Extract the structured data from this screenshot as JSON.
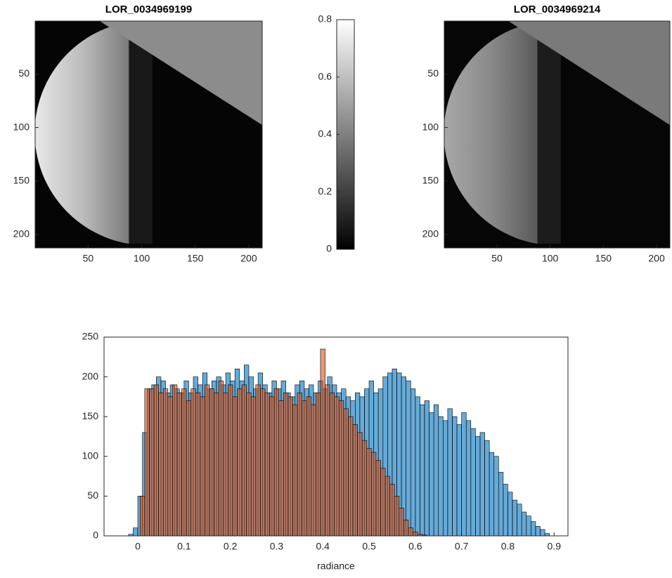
{
  "chart_data": [
    {
      "type": "image",
      "title": "LOR_0034969199",
      "xlim": [
        0.5,
        212.5
      ],
      "ylim": [
        0.5,
        212.5
      ],
      "xticks": [
        50,
        100,
        150,
        200
      ],
      "yticks": [
        50,
        100,
        150,
        200
      ]
    },
    {
      "type": "colorbar",
      "clim": [
        0,
        0.8
      ],
      "ticks": [
        0,
        0.2,
        0.4,
        0.6,
        0.8
      ]
    },
    {
      "type": "image",
      "title": "LOR_0034969214",
      "xlim": [
        0.5,
        212.5
      ],
      "ylim": [
        0.5,
        212.5
      ],
      "xticks": [
        50,
        100,
        150,
        200
      ],
      "yticks": [
        50,
        100,
        150,
        200
      ]
    },
    {
      "type": "histogram",
      "xlabel": "radiance",
      "xlim": [
        -0.073,
        0.93
      ],
      "ylim": [
        0,
        250
      ],
      "xticks": [
        0,
        0.1,
        0.2,
        0.3,
        0.4,
        0.5,
        0.6,
        0.7,
        0.8,
        0.9
      ],
      "yticks": [
        0,
        50,
        100,
        150,
        200,
        250
      ],
      "alpha": 0.6,
      "series": [
        {
          "color": "#0072bd",
          "bins": [
            -0.02,
            -0.01,
            0,
            0.01,
            0.02,
            0.03,
            0.04,
            0.05,
            0.06,
            0.07,
            0.08,
            0.09,
            0.1,
            0.11,
            0.12,
            0.13,
            0.14,
            0.15,
            0.16,
            0.17,
            0.18,
            0.19,
            0.2,
            0.21,
            0.22,
            0.23,
            0.24,
            0.25,
            0.26,
            0.27,
            0.28,
            0.29,
            0.3,
            0.31,
            0.32,
            0.33,
            0.34,
            0.35,
            0.36,
            0.37,
            0.38,
            0.39,
            0.4,
            0.41,
            0.42,
            0.43,
            0.44,
            0.45,
            0.46,
            0.47,
            0.48,
            0.49,
            0.5,
            0.51,
            0.52,
            0.53,
            0.54,
            0.55,
            0.56,
            0.57,
            0.58,
            0.59,
            0.6,
            0.61,
            0.62,
            0.63,
            0.64,
            0.65,
            0.66,
            0.67,
            0.68,
            0.69,
            0.7,
            0.71,
            0.72,
            0.73,
            0.74,
            0.75,
            0.76,
            0.77,
            0.78,
            0.79,
            0.8,
            0.81,
            0.82,
            0.83,
            0.84,
            0.85,
            0.86,
            0.87,
            0.88,
            0.89
          ],
          "values": [
            2,
            10,
            50,
            130,
            185,
            190,
            200,
            195,
            180,
            190,
            185,
            180,
            195,
            180,
            200,
            190,
            205,
            185,
            195,
            200,
            190,
            205,
            195,
            210,
            195,
            215,
            200,
            185,
            205,
            190,
            180,
            195,
            185,
            195,
            180,
            175,
            190,
            195,
            185,
            190,
            180,
            195,
            185,
            200,
            190,
            180,
            185,
            175,
            170,
            180,
            175,
            185,
            195,
            180,
            185,
            200,
            205,
            210,
            205,
            200,
            195,
            185,
            175,
            165,
            170,
            155,
            165,
            150,
            145,
            160,
            150,
            140,
            155,
            145,
            135,
            125,
            130,
            120,
            105,
            100,
            80,
            65,
            55,
            45,
            40,
            30,
            25,
            18,
            12,
            8,
            3
          ]
        },
        {
          "color": "#d95319",
          "bins": [
            0.005,
            0.015,
            0.025,
            0.035,
            0.045,
            0.055,
            0.065,
            0.075,
            0.085,
            0.095,
            0.105,
            0.115,
            0.125,
            0.135,
            0.145,
            0.155,
            0.165,
            0.175,
            0.185,
            0.195,
            0.205,
            0.215,
            0.225,
            0.235,
            0.245,
            0.255,
            0.265,
            0.275,
            0.285,
            0.295,
            0.305,
            0.315,
            0.325,
            0.335,
            0.345,
            0.355,
            0.365,
            0.375,
            0.385,
            0.395,
            0.405,
            0.415,
            0.425,
            0.435,
            0.445,
            0.455,
            0.465,
            0.475,
            0.485,
            0.495,
            0.505,
            0.515,
            0.525,
            0.535,
            0.545,
            0.555,
            0.565,
            0.575,
            0.585,
            0.595,
            0.605,
            0.615,
            0.625
          ],
          "values": [
            50,
            185,
            185,
            190,
            180,
            185,
            175,
            190,
            180,
            185,
            170,
            185,
            180,
            175,
            190,
            185,
            180,
            195,
            180,
            190,
            175,
            185,
            190,
            180,
            175,
            190,
            185,
            180,
            175,
            185,
            170,
            180,
            175,
            165,
            180,
            170,
            175,
            165,
            180,
            235,
            190,
            180,
            175,
            170,
            160,
            150,
            140,
            130,
            120,
            110,
            105,
            95,
            85,
            75,
            65,
            50,
            35,
            20,
            10,
            5,
            2,
            1
          ]
        }
      ]
    }
  ]
}
